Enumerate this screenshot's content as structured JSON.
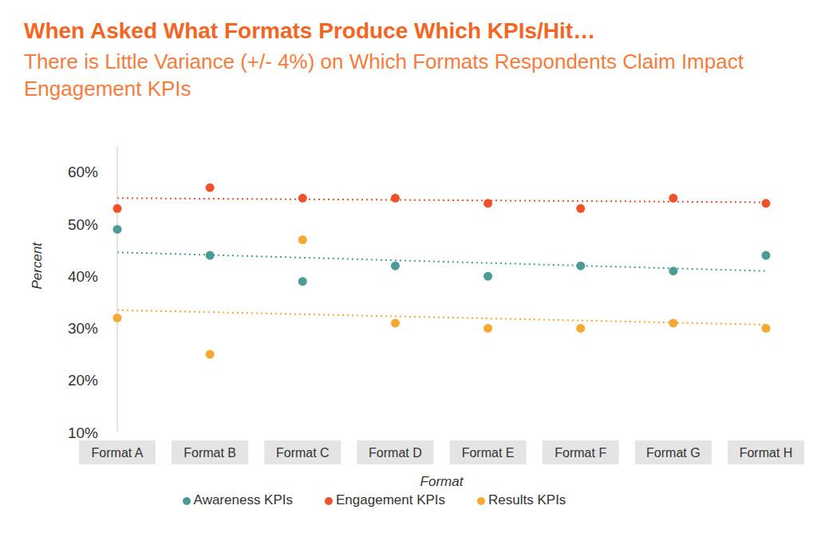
{
  "chart_data": {
    "type": "scatter",
    "title": "When Asked What Formats Produce Which KPIs/Hit…",
    "subtitle": "There is Little Variance (+/- 4%) on Which Formats Respondents Claim Impact Engagement KPIs",
    "x_label": "Format",
    "y_label": "Percent",
    "categories": [
      "Format A",
      "Format B",
      "Format C",
      "Format D",
      "Format E",
      "Format F",
      "Format G",
      "Format H"
    ],
    "series": [
      {
        "name": "Awareness KPIs",
        "color": "#4a9b95",
        "marker": "circle",
        "line_style": "dotted",
        "values": [
          49,
          44,
          39,
          42,
          40,
          42,
          41,
          44
        ],
        "trend": [
          44.6,
          41
        ]
      },
      {
        "name": "Engagement KPIs",
        "color": "#f0502a",
        "marker": "circle",
        "line_style": "dotted",
        "values": [
          53,
          57,
          55,
          55,
          54,
          53,
          55,
          54
        ],
        "trend": [
          55,
          54.2
        ]
      },
      {
        "name": "Results KPIs",
        "color": "#f7a830",
        "marker": "circle",
        "line_style": "dotted",
        "values": [
          32,
          25,
          47,
          31,
          30,
          30,
          31,
          30
        ],
        "trend": [
          33.5,
          30.7
        ]
      }
    ],
    "ylim": [
      10,
      65
    ],
    "yticks": [
      {
        "value": 10,
        "label": "10%"
      },
      {
        "value": 20,
        "label": "20%"
      },
      {
        "value": 30,
        "label": "30%"
      },
      {
        "value": 40,
        "label": "40%"
      },
      {
        "value": 50,
        "label": "50%"
      },
      {
        "value": 60,
        "label": "60%"
      }
    ],
    "grid": false,
    "legend": "bottom"
  }
}
